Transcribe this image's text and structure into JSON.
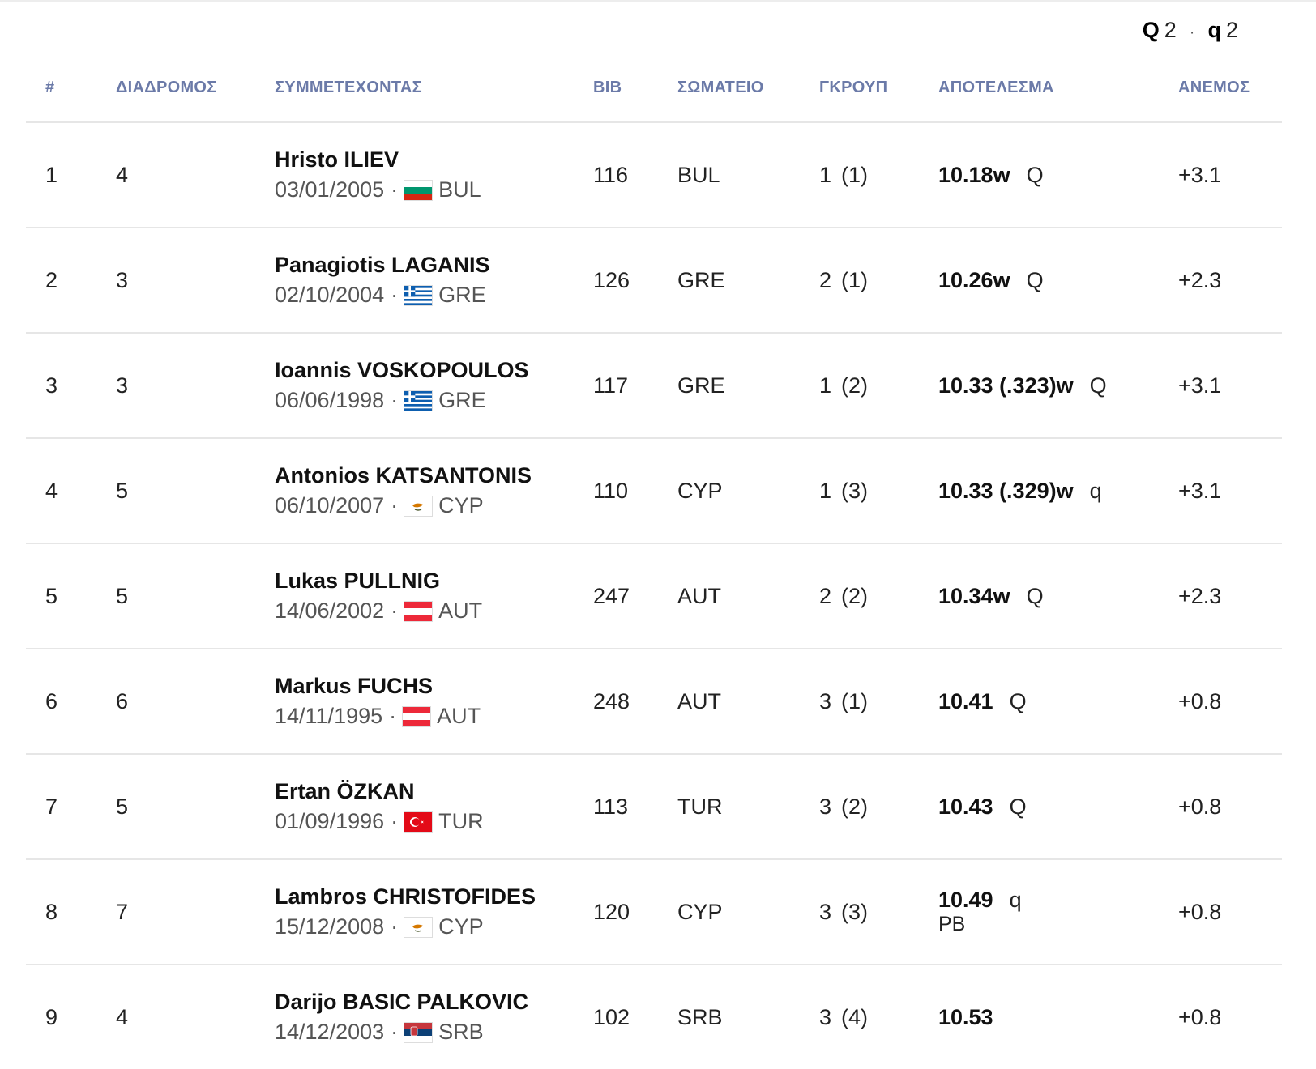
{
  "legend": {
    "Q_label": "Q",
    "Q_count": "2",
    "dot": "·",
    "q_label": "q",
    "q_count": "2"
  },
  "headers": {
    "rank": "#",
    "lane": "ΔΙΑΔΡΟΜΟΣ",
    "athlete": "ΣΥΜΜΕΤΕΧΟΝΤΑΣ",
    "bib": "BIB",
    "club": "ΣΩΜΑΤΕΙΟ",
    "group": "ΓΚΡΟΥΠ",
    "result": "ΑΠΟΤΕΛΕΣΜΑ",
    "wind": "ΑΝΕΜΟΣ"
  },
  "rows": [
    {
      "rank": "1",
      "lane": "4",
      "name": "Hristo ILIEV",
      "dob": "03/01/2005",
      "country": "BUL",
      "flag": "bul-flag-icon",
      "bib": "116",
      "club": "BUL",
      "group": "1",
      "group_pos": "(1)",
      "mark": "10.18w",
      "qual": "Q",
      "pb": "",
      "wind": "+3.1"
    },
    {
      "rank": "2",
      "lane": "3",
      "name": "Panagiotis LAGANIS",
      "dob": "02/10/2004",
      "country": "GRE",
      "flag": "gre-flag-icon",
      "bib": "126",
      "club": "GRE",
      "group": "2",
      "group_pos": "(1)",
      "mark": "10.26w",
      "qual": "Q",
      "pb": "",
      "wind": "+2.3"
    },
    {
      "rank": "3",
      "lane": "3",
      "name": "Ioannis VOSKOPOULOS",
      "dob": "06/06/1998",
      "country": "GRE",
      "flag": "gre-flag-icon",
      "bib": "117",
      "club": "GRE",
      "group": "1",
      "group_pos": "(2)",
      "mark": "10.33 (.323)w",
      "qual": "Q",
      "pb": "",
      "wind": "+3.1"
    },
    {
      "rank": "4",
      "lane": "5",
      "name": "Antonios KATSANTONIS",
      "dob": "06/10/2007",
      "country": "CYP",
      "flag": "cyp-flag-icon",
      "bib": "110",
      "club": "CYP",
      "group": "1",
      "group_pos": "(3)",
      "mark": "10.33 (.329)w",
      "qual": "q",
      "pb": "",
      "wind": "+3.1"
    },
    {
      "rank": "5",
      "lane": "5",
      "name": "Lukas PULLNIG",
      "dob": "14/06/2002",
      "country": "AUT",
      "flag": "aut-flag-icon",
      "bib": "247",
      "club": "AUT",
      "group": "2",
      "group_pos": "(2)",
      "mark": "10.34w",
      "qual": "Q",
      "pb": "",
      "wind": "+2.3"
    },
    {
      "rank": "6",
      "lane": "6",
      "name": "Markus FUCHS",
      "dob": "14/11/1995",
      "country": "AUT",
      "flag": "aut-flag-icon",
      "bib": "248",
      "club": "AUT",
      "group": "3",
      "group_pos": "(1)",
      "mark": "10.41",
      "qual": "Q",
      "pb": "",
      "wind": "+0.8"
    },
    {
      "rank": "7",
      "lane": "5",
      "name": "Ertan ÖZKAN",
      "dob": "01/09/1996",
      "country": "TUR",
      "flag": "tur-flag-icon",
      "bib": "113",
      "club": "TUR",
      "group": "3",
      "group_pos": "(2)",
      "mark": "10.43",
      "qual": "Q",
      "pb": "",
      "wind": "+0.8"
    },
    {
      "rank": "8",
      "lane": "7",
      "name": "Lambros CHRISTOFIDES",
      "dob": "15/12/2008",
      "country": "CYP",
      "flag": "cyp-flag-icon",
      "bib": "120",
      "club": "CYP",
      "group": "3",
      "group_pos": "(3)",
      "mark": "10.49",
      "qual": "q",
      "pb": "PB",
      "wind": "+0.8"
    },
    {
      "rank": "9",
      "lane": "4",
      "name": "Darijo BASIC PALKOVIC",
      "dob": "14/12/2003",
      "country": "SRB",
      "flag": "srb-flag-icon",
      "bib": "102",
      "club": "SRB",
      "group": "3",
      "group_pos": "(4)",
      "mark": "10.53",
      "qual": "",
      "pb": "",
      "wind": "+0.8"
    }
  ]
}
